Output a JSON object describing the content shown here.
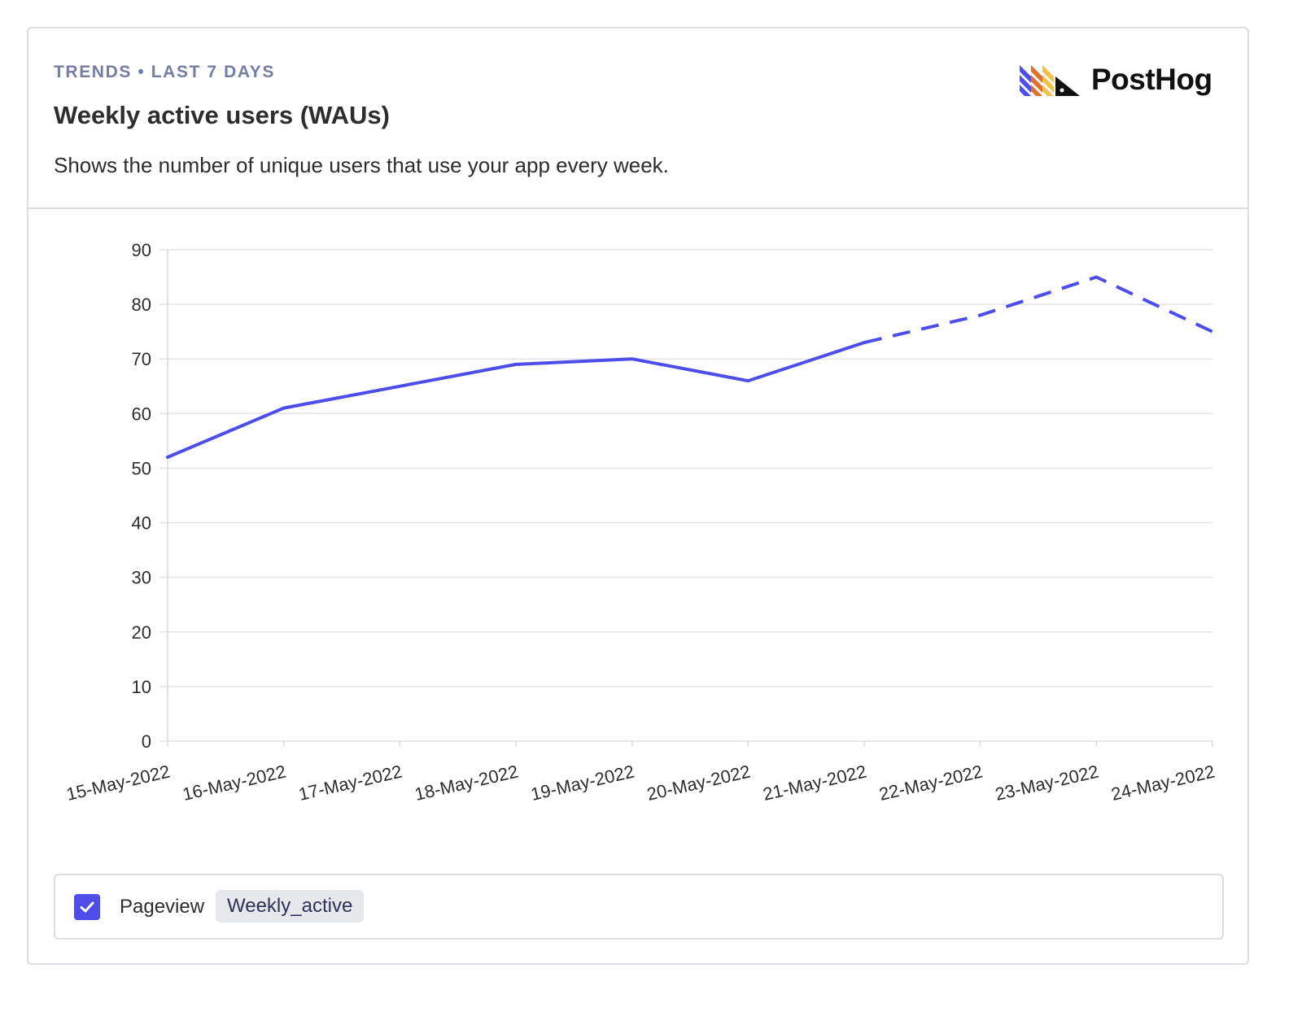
{
  "header": {
    "eyebrow": "TRENDS • LAST 7 DAYS",
    "title": "Weekly active users (WAUs)",
    "description": "Shows the number of unique users that use your app every week.",
    "brand": "PostHog"
  },
  "legend": {
    "checked": true,
    "event_label": "Pageview",
    "tag_label": "Weekly_active"
  },
  "colors": {
    "series": "#4d4dea",
    "logo_blue": "#4d4dea",
    "logo_orange": "#e0702e",
    "logo_yellow": "#f2c14b"
  },
  "chart_data": {
    "type": "line",
    "title": "",
    "xlabel": "",
    "ylabel": "",
    "categories": [
      "15-May-2022",
      "16-May-2022",
      "17-May-2022",
      "18-May-2022",
      "19-May-2022",
      "20-May-2022",
      "21-May-2022",
      "22-May-2022",
      "23-May-2022",
      "24-May-2022"
    ],
    "series": [
      {
        "values": [
          52,
          61,
          65,
          69,
          70,
          66,
          73,
          78,
          85,
          75
        ],
        "solid_through_index": 6,
        "dashed_after_index": 6
      }
    ],
    "ylim": [
      0,
      90
    ],
    "yticks": [
      0,
      10,
      20,
      30,
      40,
      50,
      60,
      70,
      80,
      90
    ],
    "grid": true,
    "legend": "bottom"
  }
}
